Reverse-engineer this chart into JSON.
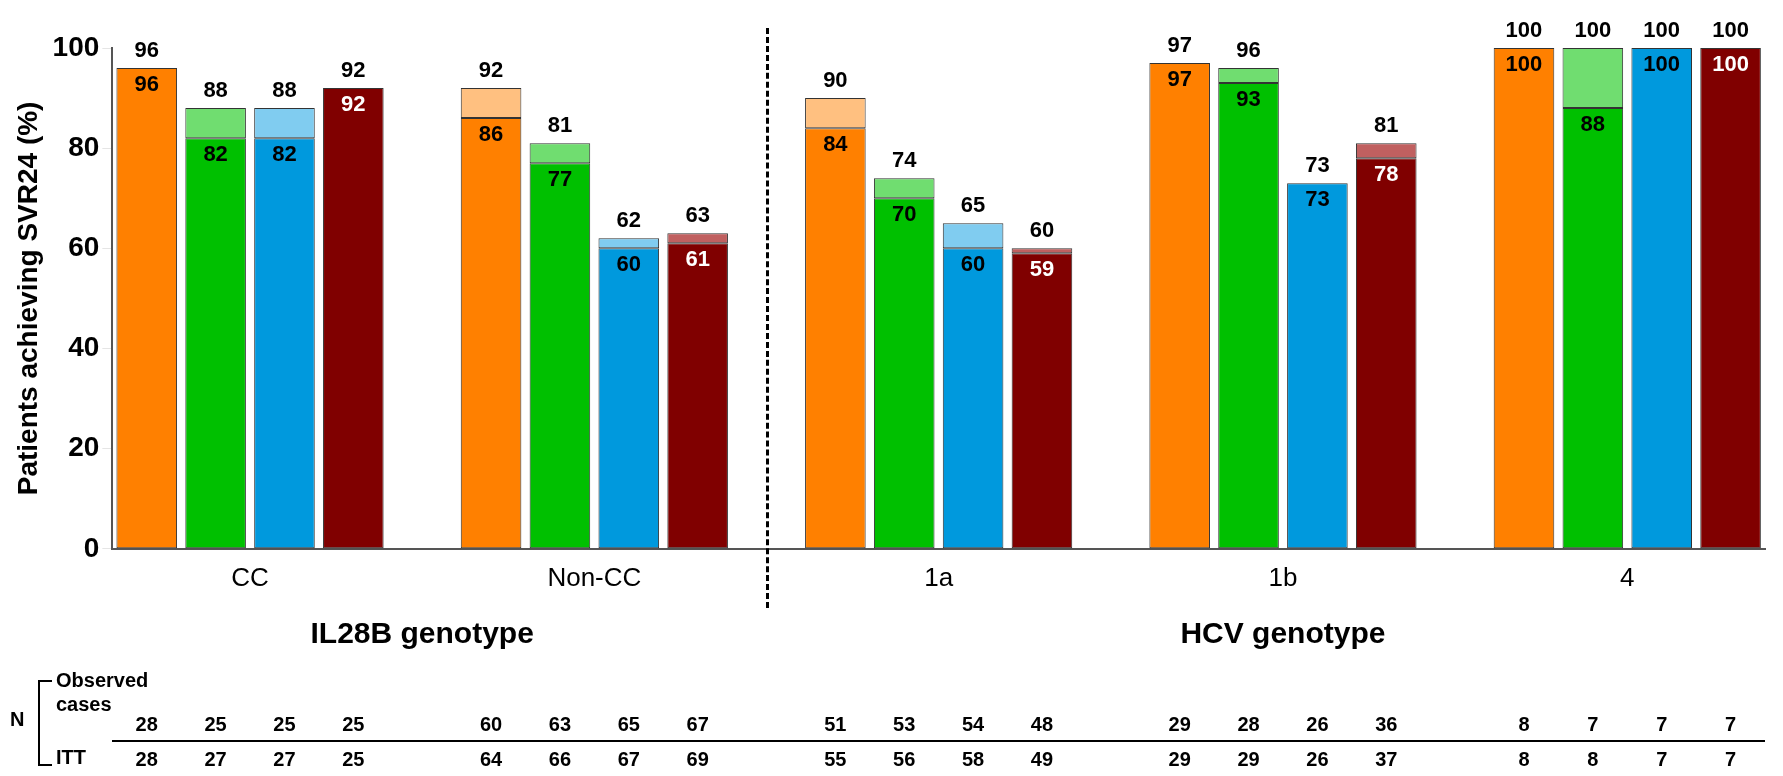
{
  "chart_data": {
    "type": "bar",
    "ylabel": "Patients achieving SVR24 (%)",
    "categories": [
      null,
      "CC",
      null,
      null,
      null,
      null,
      "Non-CC",
      null,
      null,
      null,
      null,
      "1a",
      null,
      null,
      null,
      null,
      "1b",
      null,
      null,
      null,
      null,
      "4",
      null,
      null
    ],
    "ylim": [
      0,
      100
    ],
    "yticks": [
      0,
      20,
      40,
      60,
      80,
      100
    ],
    "stacked": true,
    "series": [
      {
        "colors": [
          "#ff8000",
          "#00c000",
          "#0099dd",
          "#800000",
          null,
          "#ff8000",
          "#00c000",
          "#0099dd",
          "#800000",
          null,
          "#ff8000",
          "#00c000",
          "#0099dd",
          "#800000",
          null,
          "#ff8000",
          "#00c000",
          "#0099dd",
          "#800000",
          null,
          "#ff8000",
          "#00c000",
          "#0099dd",
          "#800000"
        ],
        "values": [
          96,
          82,
          82,
          92,
          null,
          86,
          77,
          60,
          61,
          null,
          84,
          70,
          60,
          59,
          null,
          97,
          93,
          73,
          78,
          null,
          100,
          88,
          100,
          100
        ],
        "value_labels": [
          "96",
          "82",
          "82",
          "92",
          null,
          "86",
          "77",
          "60",
          "61",
          null,
          "84",
          "70",
          "60",
          "59",
          null,
          "97",
          "93",
          "73",
          "78",
          null,
          "100",
          "88",
          "100",
          "100"
        ]
      },
      {
        "colors": [
          "#ffc080",
          "#70dd70",
          "#80ccf0",
          "#c06060",
          null,
          "#ffc080",
          "#70dd70",
          "#80ccf0",
          "#c06060",
          null,
          "#ffc080",
          "#70dd70",
          "#80ccf0",
          "#c06060",
          null,
          "#ffc080",
          "#70dd70",
          "#80ccf0",
          "#c06060",
          null,
          "#ffc080",
          "#70dd70",
          "#80ccf0",
          "#c06060"
        ],
        "values": [
          null,
          6,
          6,
          null,
          null,
          6,
          4,
          2,
          2,
          null,
          6,
          4,
          5,
          1,
          null,
          null,
          3,
          null,
          3,
          null,
          null,
          12,
          null,
          null
        ]
      }
    ],
    "totals": [
      "96",
      "88",
      "88",
      "92",
      null,
      "92",
      "81",
      "62",
      "63",
      null,
      "90",
      "74",
      "65",
      "60",
      null,
      "97",
      "96",
      "73",
      "81",
      null,
      "100",
      "100",
      "100",
      "100"
    ],
    "annotations": [
      "IL28B genotype",
      "HCV genotype",
      "N",
      "Observed cases",
      "ITT",
      "28 25 25 25",
      "60 63 65 67",
      "51 53 54 48",
      "29 28 26 36",
      "8 7 7 7",
      "28 27 27 25",
      "64 66 67 69",
      "55 56 58 49",
      "29 29 26 37",
      "8 8 7 7"
    ]
  }
}
